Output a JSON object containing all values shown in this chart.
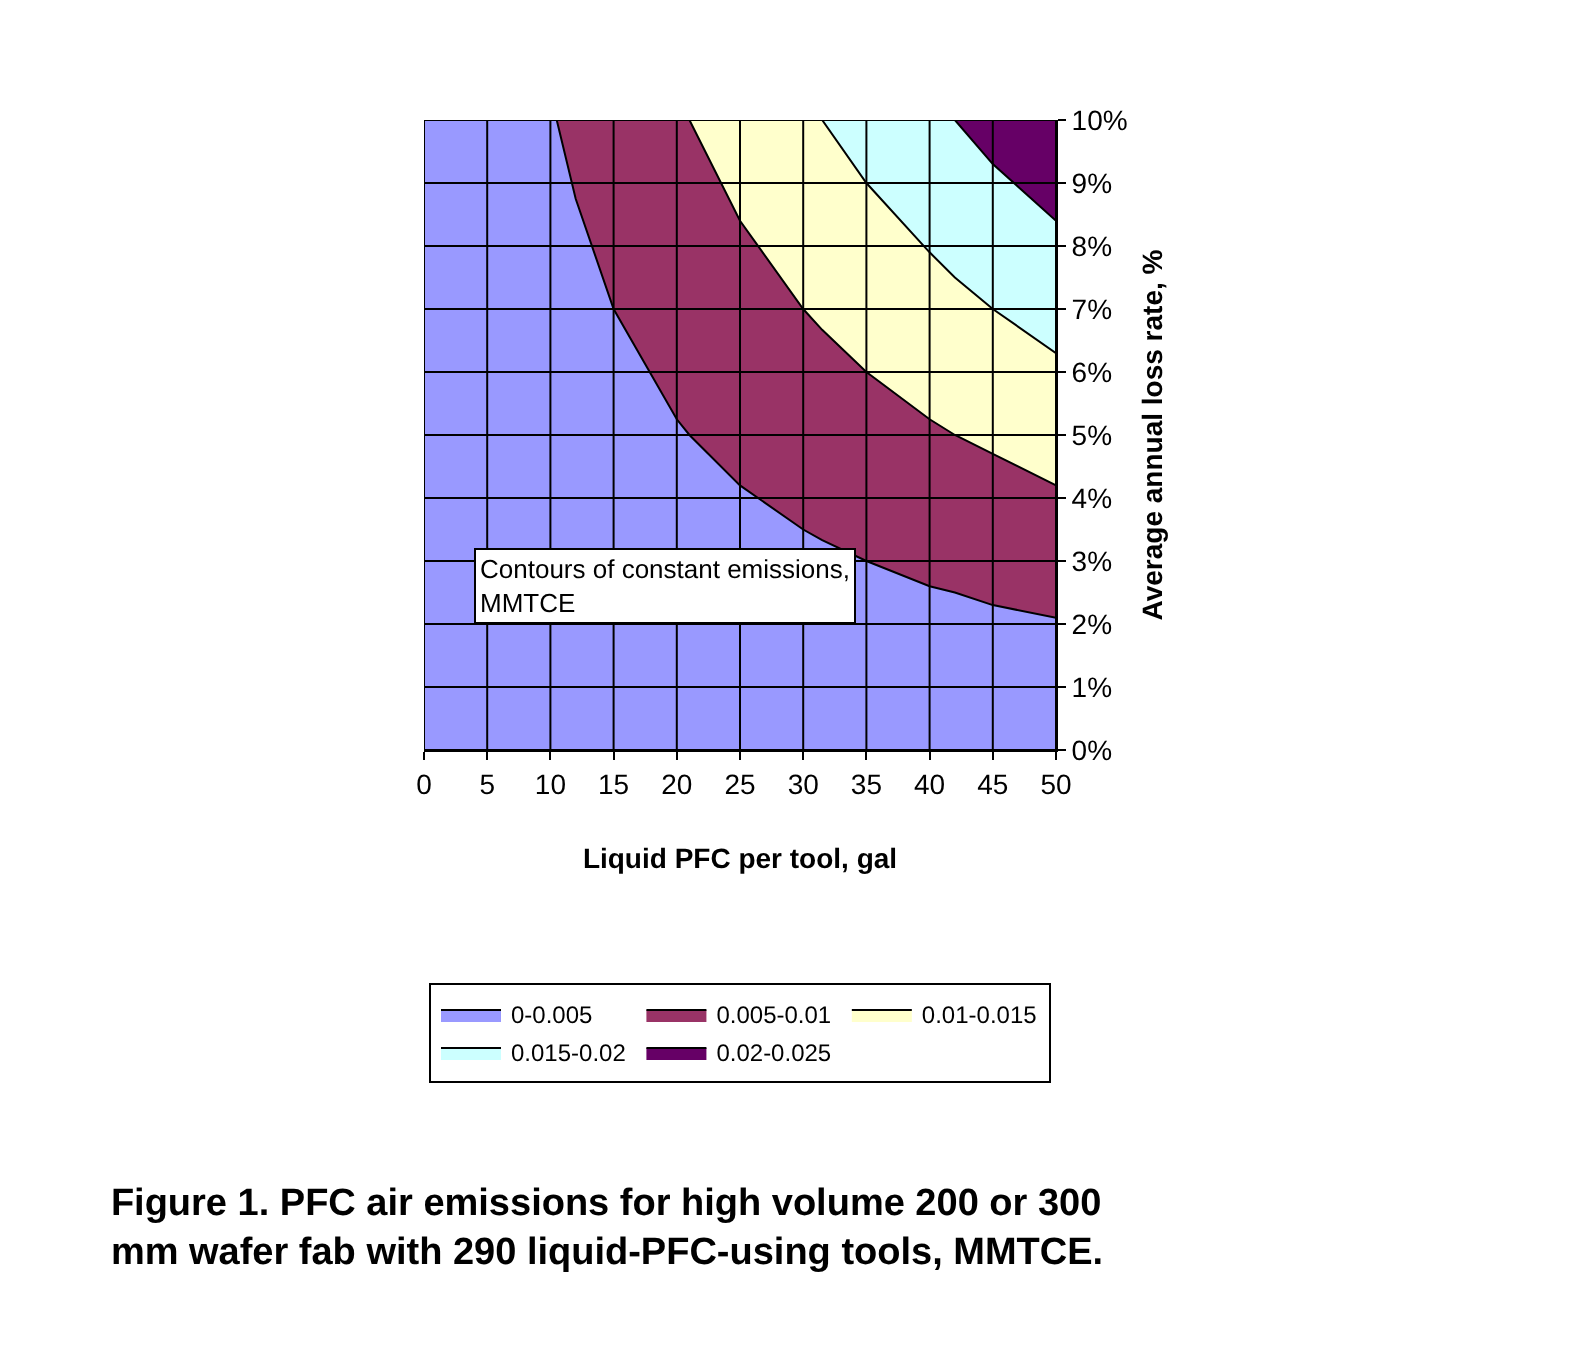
{
  "chart_data": {
    "type": "area",
    "stacked": true,
    "title": "Figure 1. PFC air emissions for high volume 200 or 300 mm wafer fab with 290 liquid-PFC-using tools, MMTCE.",
    "xlabel": "Liquid PFC per tool, gal",
    "ylabel": "Average annual loss rate, %",
    "x": [
      0,
      5,
      10,
      10.5,
      12,
      15,
      20,
      21,
      25,
      30,
      31.5,
      35,
      40,
      42,
      45,
      50
    ],
    "series": [
      {
        "name": "0-0.005",
        "color": "#9999ff",
        "values": [
          10,
          10,
          10,
          10,
          8.75,
          7,
          5.25,
          5,
          4.2,
          3.5,
          3.33,
          3,
          2.6,
          2.5,
          2.3,
          2.1
        ]
      },
      {
        "name": "0.005-0.01",
        "color": "#993366",
        "values": [
          0,
          0,
          0,
          0,
          1.25,
          3,
          4.75,
          5,
          4.2,
          3.5,
          3.34,
          3,
          2.65,
          2.5,
          2.4,
          2.1
        ]
      },
      {
        "name": "0.01-0.015",
        "color": "#ffffcc",
        "values": [
          0,
          0,
          0,
          0,
          0,
          0,
          0,
          0,
          1.6,
          3,
          3.33,
          3,
          2.65,
          2.5,
          2.3,
          2.1
        ]
      },
      {
        "name": "0.015-0.02",
        "color": "#ccffff",
        "values": [
          0,
          0,
          0,
          0,
          0,
          0,
          0,
          0,
          0,
          0,
          0,
          1,
          2.1,
          2.5,
          2.3,
          2.1
        ]
      },
      {
        "name": "0.02-0.025",
        "color": "#660066",
        "values": [
          0,
          0,
          0,
          0,
          0,
          0,
          0,
          0,
          0,
          0,
          0,
          0,
          0,
          0,
          0.7,
          1.6
        ]
      }
    ],
    "xlim": [
      0,
      50
    ],
    "xticks": [
      0,
      5,
      10,
      15,
      20,
      25,
      30,
      35,
      40,
      45,
      50
    ],
    "ylim": [
      0,
      10
    ],
    "yticks": [
      {
        "value": 0,
        "label": "0%"
      },
      {
        "value": 1,
        "label": "1%"
      },
      {
        "value": 2,
        "label": "2%"
      },
      {
        "value": 3,
        "label": "3%"
      },
      {
        "value": 4,
        "label": "4%"
      },
      {
        "value": 5,
        "label": "5%"
      },
      {
        "value": 6,
        "label": "6%"
      },
      {
        "value": 7,
        "label": "7%"
      },
      {
        "value": 8,
        "label": "8%"
      },
      {
        "value": 9,
        "label": "9%"
      },
      {
        "value": 10,
        "label": "10%"
      }
    ],
    "grid": true,
    "legend": "bottom",
    "annotations": [
      "Contours of constant emissions, MMTCE"
    ]
  }
}
